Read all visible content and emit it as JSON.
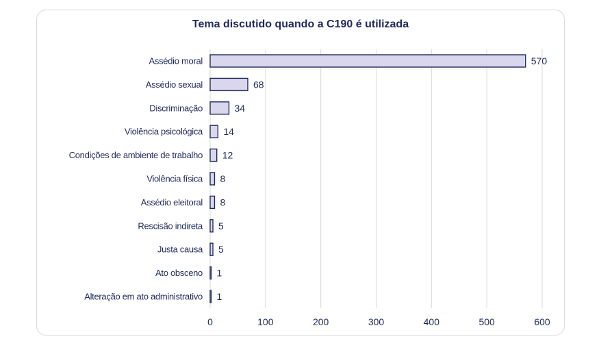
{
  "chart_data": {
    "type": "bar",
    "orientation": "horizontal",
    "title": "Tema discutido quando a C190 é utilizada",
    "categories": [
      "Assédio moral",
      "Assédio sexual",
      "Discriminação",
      "Violência psicológica",
      "Condições de ambiente de trabalho",
      "Violência física",
      "Assédio eleitoral",
      "Rescisão indireta",
      "Justa causa",
      "Ato obsceno",
      "Alteração em ato administrativo"
    ],
    "values": [
      570,
      68,
      34,
      14,
      12,
      8,
      8,
      5,
      5,
      1,
      1
    ],
    "xlim": [
      0,
      600
    ],
    "xticks": [
      0,
      100,
      200,
      300,
      400,
      500,
      600
    ],
    "xlabel": "",
    "ylabel": "",
    "grid": true,
    "colors": {
      "bar_fill": "#d9d6ee",
      "bar_stroke": "#1f2a5c",
      "text": "#1f2a5c",
      "grid": "#d9d9d9"
    }
  }
}
